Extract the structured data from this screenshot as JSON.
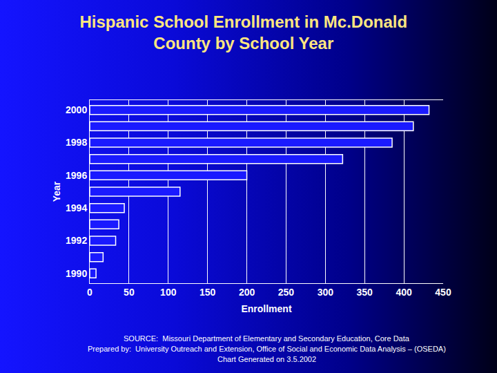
{
  "chart_data": {
    "type": "bar",
    "orientation": "horizontal",
    "title": "Hispanic School Enrollment in Mc.Donald County by School Year",
    "x_label": "Enrollment",
    "y_label": "Year",
    "categories": [
      "1990",
      null,
      "1992",
      null,
      "1994",
      null,
      "1996",
      null,
      "1998",
      null,
      "2000"
    ],
    "values": [
      8,
      17,
      33,
      37,
      44,
      115,
      200,
      322,
      385,
      412,
      432
    ],
    "color": "#1a1aff",
    "xlim": [
      0,
      450
    ],
    "xticks": [
      0,
      50,
      100,
      150,
      200,
      250,
      300,
      350,
      400,
      450
    ],
    "grid": true,
    "annotations": [
      "SOURCE:  Missouri Department of Elementary and Secondary Education, Core Data",
      "Prepared by:  University Outreach and Extension, Office of Social and Economic Data Analysis – (OSEDA)",
      "Chart Generated on 3.5.2002"
    ]
  }
}
